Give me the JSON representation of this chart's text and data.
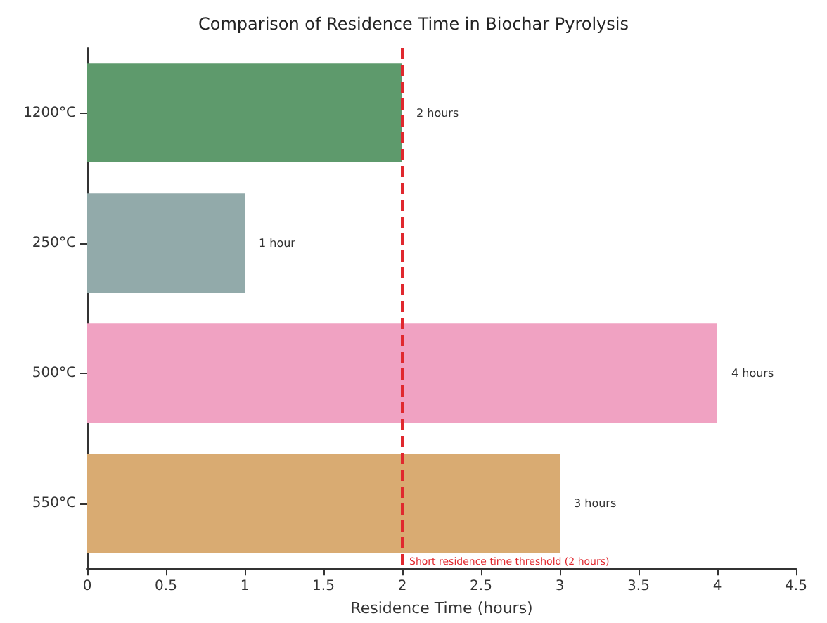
{
  "chart_data": {
    "type": "bar",
    "orientation": "horizontal",
    "title": "Comparison of Residence Time in Biochar Pyrolysis",
    "xlabel": "Residence Time (hours)",
    "categories": [
      "1200°C",
      "250°C",
      "500°C",
      "550°C"
    ],
    "values": [
      2,
      1,
      4,
      3
    ],
    "colors": [
      "#5e9a6c",
      "#92aaaa",
      "#f0a2c2",
      "#d9ab72"
    ],
    "value_labels": [
      "2 hours",
      "1 hour",
      "4 hours",
      "3 hours"
    ],
    "xlim": [
      0,
      4.5
    ],
    "xticks": [
      0,
      0.5,
      1,
      1.5,
      2,
      2.5,
      3,
      3.5,
      4,
      4.5
    ],
    "ref_lines": [
      {
        "axis": "x",
        "value": 2,
        "label": "Short residence time threshold (2 hours)",
        "color": "#e0282e",
        "line_style": "dashed"
      }
    ],
    "grid": false
  }
}
